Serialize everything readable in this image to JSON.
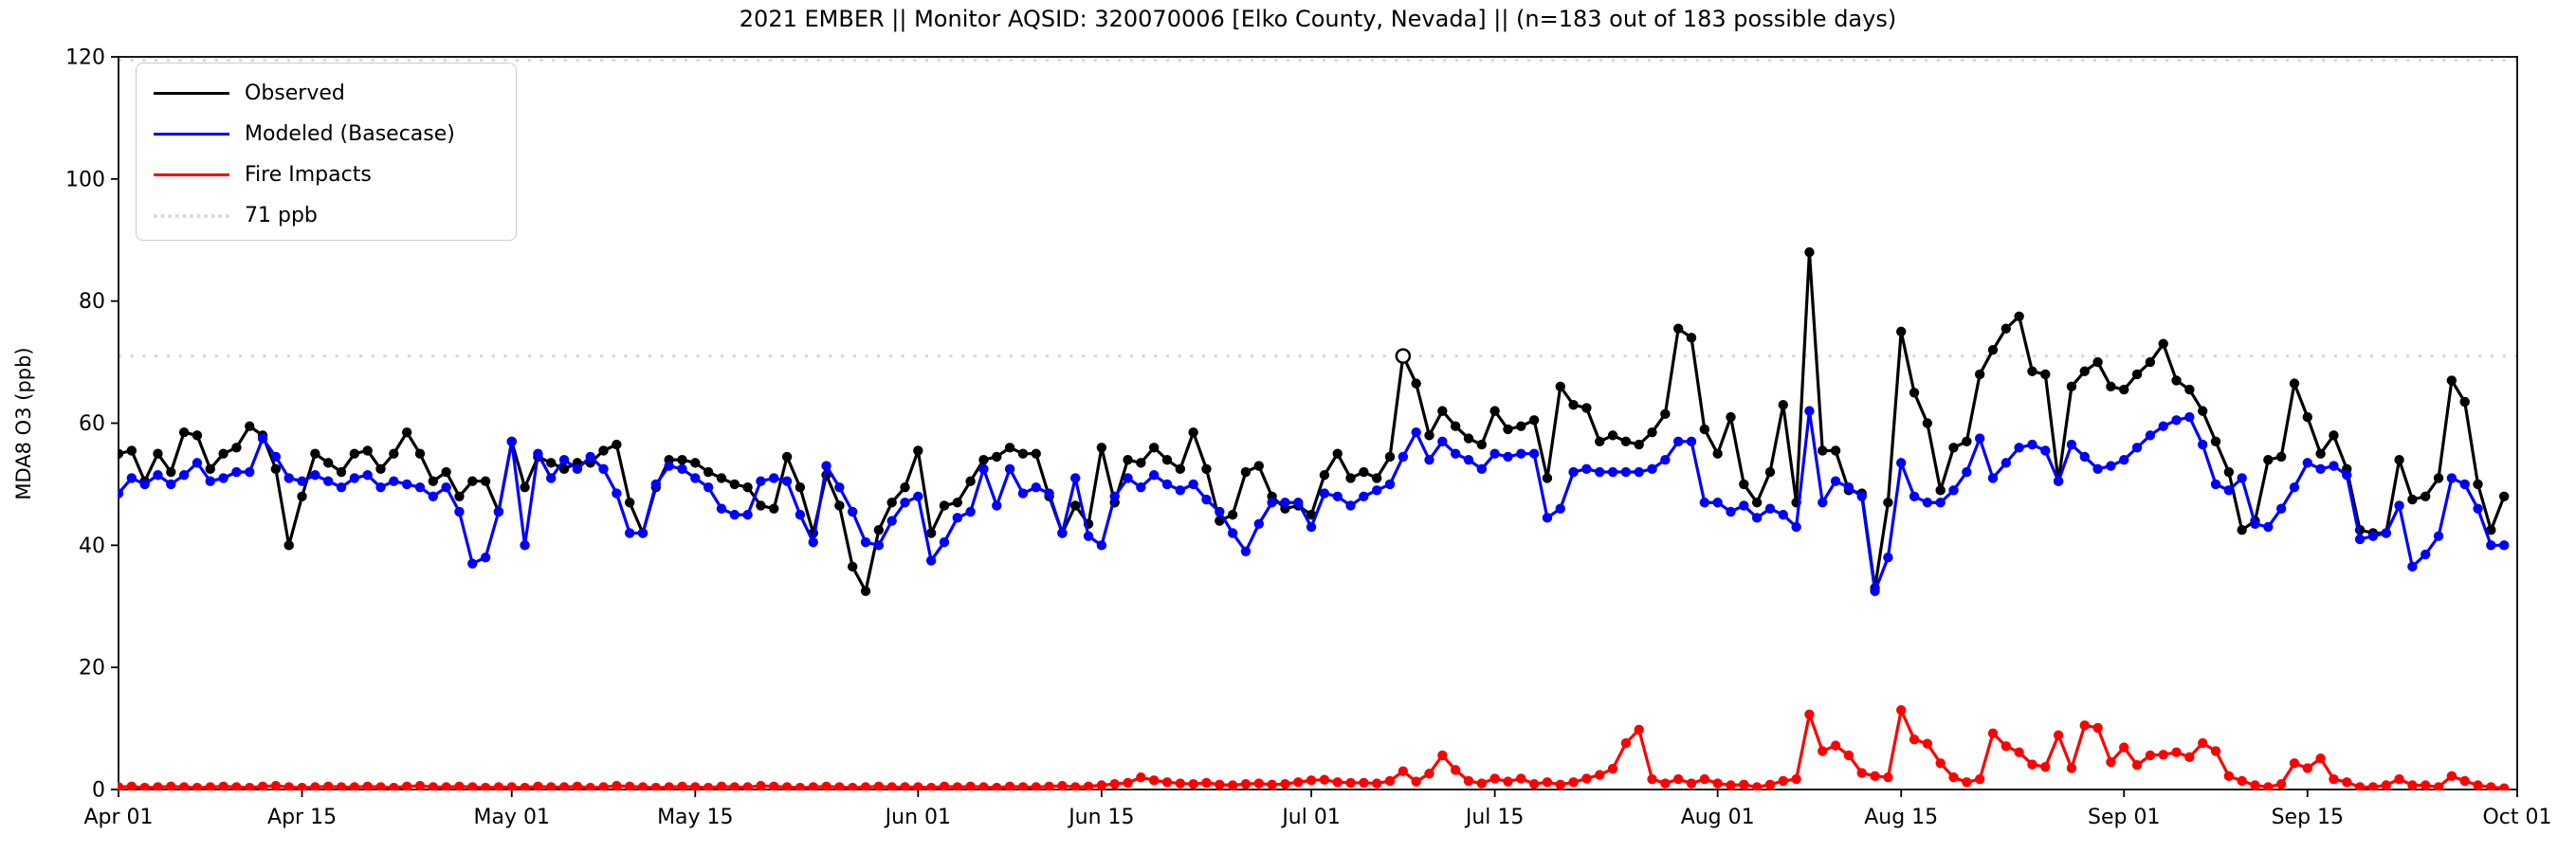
{
  "chart_data": {
    "type": "line",
    "title": "2021 EMBER || Monitor AQSID: 320070006 [Elko County, Nevada] || (n=183 out of 183 possible days)",
    "ylabel": "MDA8 O3 (ppb)",
    "ylim": [
      0,
      120
    ],
    "yticks": [
      0,
      20,
      40,
      60,
      80,
      100,
      120
    ],
    "n_days": 183,
    "x_range_labels": [
      "Apr 01",
      "Oct 01"
    ],
    "grid": false,
    "legend_position": "upper-left",
    "xticks": [
      {
        "label": "Apr 01",
        "day": 1
      },
      {
        "label": "Apr 15",
        "day": 15
      },
      {
        "label": "May 01",
        "day": 31
      },
      {
        "label": "May 15",
        "day": 45
      },
      {
        "label": "Jun 01",
        "day": 62
      },
      {
        "label": "Jun 15",
        "day": 76
      },
      {
        "label": "Jul 01",
        "day": 92
      },
      {
        "label": "Jul 15",
        "day": 106
      },
      {
        "label": "Aug 01",
        "day": 123
      },
      {
        "label": "Aug 15",
        "day": 137
      },
      {
        "label": "Sep 01",
        "day": 154
      },
      {
        "label": "Sep 15",
        "day": 168
      },
      {
        "label": "Oct 01",
        "day": 184
      }
    ],
    "reference_lines": [
      {
        "value": 71,
        "label": "71 ppb",
        "color": "#d9d9d9",
        "style": "dotted"
      },
      {
        "value": 120,
        "label": null,
        "color": "#d9d9d9",
        "style": "dotted"
      }
    ],
    "series": [
      {
        "name": "Observed",
        "color": "#000000",
        "open_marker_indices": [
          98
        ],
        "values": [
          55,
          55.5,
          50.5,
          55,
          52,
          58.5,
          58,
          52.5,
          55,
          56,
          59.5,
          58,
          52.5,
          40,
          48,
          55,
          53.5,
          52,
          55,
          55.5,
          52.5,
          55,
          58.5,
          55,
          50.5,
          52,
          48,
          50.5,
          50.5,
          45.5,
          57,
          49.5,
          54.5,
          53.5,
          52.5,
          53.5,
          53.5,
          55.5,
          56.5,
          47,
          42,
          49.5,
          54,
          54,
          53.5,
          52,
          51,
          50,
          49.5,
          46.5,
          46,
          54.5,
          49.5,
          42,
          51.5,
          46.5,
          36.5,
          32.5,
          42.5,
          47,
          49.5,
          55.5,
          42,
          46.5,
          47,
          50.5,
          54,
          54.5,
          56,
          55,
          55,
          48,
          42,
          46.5,
          43.5,
          56,
          47,
          54,
          53.5,
          56,
          54,
          52.5,
          58.5,
          52.5,
          44,
          45,
          52,
          53,
          48,
          46,
          46.5,
          45,
          51.5,
          55,
          51,
          52,
          51,
          54.5,
          71,
          66.5,
          58,
          62,
          59.5,
          57.5,
          56.5,
          62,
          59,
          59.5,
          60.5,
          51,
          66,
          63,
          62.5,
          57,
          58,
          57,
          56.5,
          58.5,
          61.5,
          75.5,
          74,
          59,
          55,
          61,
          50,
          47,
          52,
          63,
          47,
          88,
          55.5,
          55.5,
          49,
          48.5,
          33,
          47,
          75,
          65,
          60,
          49,
          56,
          57,
          68,
          72,
          75.5,
          77.5,
          68.5,
          68,
          50.5,
          66,
          68.5,
          70,
          66,
          65.5,
          68,
          70,
          73,
          67,
          65.5,
          62,
          57,
          52,
          42.5,
          44,
          54,
          54.5,
          66.5,
          61,
          55,
          58,
          52.5,
          42.5,
          42,
          42,
          54,
          47.5,
          48,
          51,
          67,
          63.5,
          50,
          42.5,
          48
        ]
      },
      {
        "name": "Modeled (Basecase)",
        "color": "#0000ff",
        "open_marker_indices": [],
        "values": [
          48.5,
          51,
          50,
          51.5,
          50,
          51.5,
          53.5,
          50.5,
          51,
          52,
          52,
          57.5,
          54.5,
          51,
          50.5,
          51.5,
          50.5,
          49.5,
          51,
          51.5,
          49.5,
          50.5,
          50,
          49.5,
          48,
          49.5,
          45.5,
          37,
          38,
          45.5,
          57,
          40,
          55,
          51,
          54,
          52.5,
          54.5,
          52.5,
          48.5,
          42,
          42,
          50,
          53,
          52.5,
          51,
          49.5,
          46,
          45,
          45,
          50.5,
          51,
          50.5,
          45,
          40.5,
          53,
          49.5,
          45.5,
          40.5,
          40,
          44,
          47,
          48,
          37.5,
          40.5,
          44.5,
          45.5,
          52.5,
          46.5,
          52.5,
          48.5,
          49.5,
          48.5,
          42,
          51,
          41.5,
          40,
          48,
          51,
          49.5,
          51.5,
          50,
          49,
          50,
          47.5,
          45.5,
          42,
          39,
          43.5,
          47,
          47,
          47,
          43,
          48.5,
          48,
          46.5,
          48,
          49,
          50,
          54.5,
          58.5,
          54,
          57,
          55,
          54,
          52.5,
          55,
          54.5,
          55,
          55,
          44.5,
          46,
          52,
          52.5,
          52,
          52,
          52,
          52,
          52.5,
          54,
          57,
          57,
          47,
          47,
          45.5,
          46.5,
          44.5,
          46,
          45,
          43,
          62,
          47,
          50.5,
          49.5,
          48,
          32.5,
          38,
          53.5,
          48,
          47,
          47,
          49,
          52,
          57.5,
          51,
          53.5,
          56,
          56.5,
          55.5,
          50.5,
          56.5,
          54.5,
          52.5,
          53,
          54,
          56,
          58,
          59.5,
          60.5,
          61,
          56.5,
          50,
          49,
          51,
          43.5,
          43,
          46,
          49.5,
          53.5,
          52.5,
          53,
          51.5,
          41,
          41.5,
          42,
          46.5,
          36.5,
          38.5,
          41.5,
          51,
          50,
          46,
          40,
          40
        ]
      },
      {
        "name": "Fire Impacts",
        "color": "#ff0000",
        "open_marker_indices": [],
        "values": [
          0.4,
          0.5,
          0.3,
          0.4,
          0.5,
          0.4,
          0.3,
          0.4,
          0.5,
          0.4,
          0.3,
          0.5,
          0.6,
          0.4,
          0.3,
          0.4,
          0.5,
          0.4,
          0.4,
          0.5,
          0.4,
          0.3,
          0.5,
          0.6,
          0.4,
          0.4,
          0.5,
          0.4,
          0.3,
          0.4,
          0.4,
          0.3,
          0.5,
          0.4,
          0.4,
          0.5,
          0.3,
          0.4,
          0.6,
          0.5,
          0.4,
          0.3,
          0.4,
          0.5,
          0.4,
          0.3,
          0.5,
          0.4,
          0.4,
          0.6,
          0.5,
          0.4,
          0.3,
          0.4,
          0.5,
          0.4,
          0.3,
          0.4,
          0.5,
          0.4,
          0.4,
          0.4,
          0.3,
          0.5,
          0.4,
          0.5,
          0.4,
          0.3,
          0.5,
          0.4,
          0.4,
          0.5,
          0.6,
          0.4,
          0.5,
          0.7,
          0.9,
          1.1,
          2.0,
          1.5,
          1.2,
          1.0,
          0.9,
          1.1,
          0.8,
          0.7,
          0.9,
          1.0,
          0.8,
          0.9,
          1.2,
          1.5,
          1.6,
          1.2,
          1.1,
          1.1,
          1.0,
          1.4,
          3.0,
          1.3,
          2.6,
          5.6,
          3.2,
          1.4,
          1.0,
          1.8,
          1.3,
          1.8,
          0.9,
          1.2,
          0.8,
          1.2,
          1.8,
          2.4,
          3.4,
          7.6,
          9.8,
          1.7,
          1.0,
          1.7,
          1.0,
          1.7,
          1.0,
          0.7,
          0.8,
          0.4,
          0.8,
          1.4,
          1.7,
          12.3,
          6.3,
          7.2,
          5.6,
          2.7,
          2.2,
          2.0,
          13.0,
          8.2,
          7.5,
          4.3,
          2.0,
          1.2,
          1.7,
          9.2,
          7.1,
          6.1,
          4.1,
          3.7,
          8.9,
          3.5,
          10.5,
          10.1,
          4.5,
          6.9,
          4.0,
          5.6,
          5.7,
          6.1,
          5.3,
          7.6,
          6.3,
          2.2,
          1.4,
          0.7,
          0.4,
          0.9,
          4.3,
          3.5,
          5.1,
          1.7,
          1.2,
          0.4,
          0.4,
          0.7,
          1.7,
          0.7,
          0.7,
          0.4,
          2.2,
          1.4,
          0.7,
          0.4,
          0.2
        ]
      }
    ],
    "legend_entries": [
      {
        "label": "Observed",
        "color": "#000000",
        "style": "solid"
      },
      {
        "label": "Modeled (Basecase)",
        "color": "#0000ff",
        "style": "solid"
      },
      {
        "label": "Fire Impacts",
        "color": "#ff0000",
        "style": "solid"
      },
      {
        "label": "71 ppb",
        "color": "#d9d9d9",
        "style": "dotted"
      }
    ]
  },
  "layout_colors": {
    "background": "#ffffff",
    "axis": "#000000",
    "tick_label": "#000000"
  }
}
